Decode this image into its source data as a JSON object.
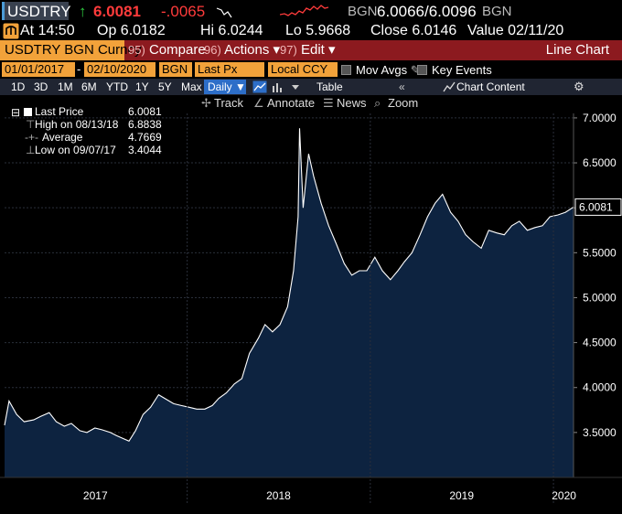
{
  "ticker": {
    "symbol": "USDTRY",
    "arrow": "↑",
    "last": "6.0081",
    "change": "-.0065",
    "source": "BGN",
    "bid_ask": "6.0066/6.0096",
    "source2": "BGN"
  },
  "quote": {
    "at": "At 14:50",
    "open": "Op 6.0182",
    "high": "Hi 6.0244",
    "low": "Lo 5.9668",
    "close": "Close 6.0146",
    "value": "Value 02/11/20"
  },
  "toolbar": {
    "security": "USDTRY BGN Curncy",
    "compare_num": "95)",
    "compare": "Compare",
    "actions_num": "96)",
    "actions": "Actions ▾",
    "edit_num": "97)",
    "edit": "Edit ▾",
    "chart_type": "Line Chart"
  },
  "params": {
    "start_date": "01/01/2017",
    "end_date": "02/10/2020",
    "source": "BGN",
    "field": "Last Px",
    "currency": "Local CCY",
    "mov_avgs": "Mov Avgs",
    "key_events": "Key Events"
  },
  "periods": [
    "1D",
    "3D",
    "1M",
    "6M",
    "YTD",
    "1Y",
    "5Y",
    "Max"
  ],
  "frequency": "Daily ▼",
  "table_label": "Table",
  "chart_content_label": "Chart Content",
  "tools": {
    "track": "Track",
    "annotate": "Annotate",
    "news": "News",
    "zoom": "Zoom"
  },
  "legend": {
    "last_price_label": "Last Price",
    "last_price_value": "6.0081",
    "high_label": "High on 08/13/18",
    "high_value": "6.8838",
    "average_label": "Average",
    "average_value": "4.7669",
    "low_label": "Low on 09/07/17",
    "low_value": "3.4044"
  },
  "colors": {
    "area_fill": "#0d2340",
    "line": "#ffffff",
    "toolbar_red": "#8c1a1f",
    "field_orange": "#f2a23a",
    "positive": "#2ecc40",
    "negative": "#ff3b3b"
  },
  "chart_data": {
    "type": "area",
    "title": "",
    "xlabel": "",
    "ylabel": "",
    "x_tick_labels": [
      "2017",
      "2018",
      "2019",
      "2020"
    ],
    "y_tick_labels": [
      "3.5000",
      "4.0000",
      "4.5000",
      "5.0000",
      "5.5000",
      "6.0000",
      "6.5000",
      "7.0000"
    ],
    "ylim": [
      3.0,
      7.05
    ],
    "last_value_label": "6.0081",
    "series": [
      {
        "x": [
          "2017-01-02",
          "2017-01-11",
          "2017-01-26",
          "2017-02-10",
          "2017-03-01",
          "2017-03-15",
          "2017-04-01",
          "2017-04-15",
          "2017-05-01",
          "2017-05-15",
          "2017-06-01",
          "2017-06-15",
          "2017-07-01",
          "2017-07-15",
          "2017-08-01",
          "2017-08-15",
          "2017-09-07",
          "2017-09-20",
          "2017-10-05",
          "2017-10-20",
          "2017-11-05",
          "2017-11-20",
          "2017-12-05",
          "2017-12-20",
          "2018-01-05",
          "2018-01-20",
          "2018-02-05",
          "2018-02-20",
          "2018-03-05",
          "2018-03-20",
          "2018-04-05",
          "2018-04-20",
          "2018-05-05",
          "2018-05-23",
          "2018-06-05",
          "2018-06-20",
          "2018-07-05",
          "2018-07-20",
          "2018-08-01",
          "2018-08-10",
          "2018-08-13",
          "2018-08-20",
          "2018-08-31",
          "2018-09-10",
          "2018-09-25",
          "2018-10-10",
          "2018-10-25",
          "2018-11-10",
          "2018-11-25",
          "2018-12-10",
          "2018-12-25",
          "2019-01-10",
          "2019-01-25",
          "2019-02-10",
          "2019-02-25",
          "2019-03-10",
          "2019-03-25",
          "2019-04-10",
          "2019-04-25",
          "2019-05-10",
          "2019-05-25",
          "2019-06-10",
          "2019-06-25",
          "2019-07-10",
          "2019-07-25",
          "2019-08-10",
          "2019-08-25",
          "2019-09-10",
          "2019-09-25",
          "2019-10-10",
          "2019-10-25",
          "2019-11-10",
          "2019-11-25",
          "2019-12-10",
          "2019-12-25",
          "2020-01-10",
          "2020-01-25",
          "2020-02-10"
        ],
        "values": [
          3.58,
          3.85,
          3.7,
          3.62,
          3.64,
          3.68,
          3.72,
          3.62,
          3.57,
          3.6,
          3.52,
          3.5,
          3.55,
          3.53,
          3.5,
          3.46,
          3.4044,
          3.52,
          3.7,
          3.78,
          3.92,
          3.87,
          3.82,
          3.8,
          3.78,
          3.76,
          3.76,
          3.8,
          3.88,
          3.94,
          4.04,
          4.1,
          4.38,
          4.55,
          4.7,
          4.62,
          4.7,
          4.9,
          5.3,
          5.9,
          6.8838,
          6.0,
          6.6,
          6.35,
          6.05,
          5.8,
          5.6,
          5.38,
          5.25,
          5.3,
          5.3,
          5.45,
          5.3,
          5.2,
          5.3,
          5.4,
          5.5,
          5.7,
          5.9,
          6.05,
          6.15,
          5.95,
          5.85,
          5.7,
          5.62,
          5.55,
          5.75,
          5.72,
          5.7,
          5.8,
          5.85,
          5.75,
          5.78,
          5.8,
          5.9,
          5.92,
          5.95,
          6.0081
        ]
      }
    ],
    "grid": true,
    "legend_position": "top-left"
  }
}
